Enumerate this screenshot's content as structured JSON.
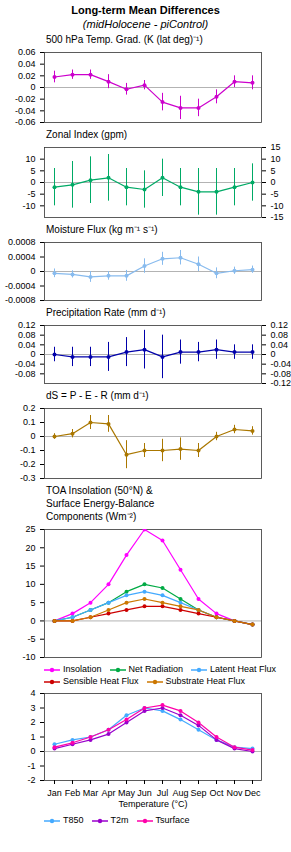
{
  "title": "Long-term Mean Differences",
  "subtitle": "(midHolocene - piControl)",
  "chart_data": [
    {
      "type": "line",
      "title": "500 hPa Temp. Grad. (K (lat deg)⁻¹)",
      "categories": [
        "Jan",
        "Feb",
        "Mar",
        "Apr",
        "May",
        "Jun",
        "Jul",
        "Aug",
        "Sep",
        "Oct",
        "Nov",
        "Dec"
      ],
      "values": [
        0.018,
        0.022,
        0.022,
        0.01,
        -0.003,
        0.004,
        -0.025,
        -0.035,
        -0.035,
        -0.016,
        0.01,
        0.008
      ],
      "yerr": [
        0.01,
        0.008,
        0.008,
        0.012,
        0.01,
        0.008,
        0.015,
        0.02,
        0.015,
        0.012,
        0.01,
        0.012
      ],
      "color": "#CC00CC",
      "marker": "circle",
      "ylim": [
        -0.06,
        0.06
      ],
      "yticks": [
        -0.06,
        -0.04,
        -0.02,
        0,
        0.02,
        0.04,
        0.06
      ],
      "tick_labels": "y"
    },
    {
      "type": "line",
      "title": "Zonal Index (gpm)",
      "categories": [
        "Jan",
        "Feb",
        "Mar",
        "Apr",
        "May",
        "Jun",
        "Jul",
        "Aug",
        "Sep",
        "Oct",
        "Nov",
        "Dec"
      ],
      "values": [
        -2,
        -1,
        1,
        2,
        -2,
        -3,
        2,
        -2,
        -4,
        -4,
        -2,
        0
      ],
      "yerr": [
        8,
        10,
        10,
        10,
        8,
        8,
        8,
        8,
        10,
        10,
        8,
        8
      ],
      "color": "#00AA66",
      "marker": "circle",
      "ylim": [
        -15,
        15
      ],
      "yticks": [
        -10,
        -5,
        0,
        5,
        10
      ],
      "y2lim": [
        -15,
        15
      ],
      "y2ticks": [
        15,
        10,
        5,
        0,
        -5,
        -10,
        -15
      ],
      "tick_labels": "y"
    },
    {
      "type": "line",
      "title": "Moisture Flux (kg m⁻¹ s⁻¹)",
      "categories": [
        "Jan",
        "Feb",
        "Mar",
        "Apr",
        "May",
        "Jun",
        "Jul",
        "Aug",
        "Sep",
        "Oct",
        "Nov",
        "Dec"
      ],
      "values": [
        -5e-05,
        -8e-05,
        -0.00015,
        -0.00012,
        -0.00012,
        0.00015,
        0.00035,
        0.00038,
        0.0002,
        -5e-05,
        2e-05,
        5e-05
      ],
      "yerr": [
        0.00012,
        0.0001,
        0.00015,
        0.00012,
        0.00015,
        0.0002,
        0.00018,
        0.0002,
        0.0002,
        0.00015,
        0.0001,
        0.0001
      ],
      "color": "#88BBEE",
      "marker": "circle",
      "ylim": [
        -0.0008,
        0.0008
      ],
      "yticks": [
        -0.0008,
        -0.0004,
        0,
        0.0004,
        0.0008
      ],
      "tick_labels": "y"
    },
    {
      "type": "line",
      "title": "Precipitation Rate (mm d⁻¹)",
      "categories": [
        "Jan",
        "Feb",
        "Mar",
        "Apr",
        "May",
        "Jun",
        "Jul",
        "Aug",
        "Sep",
        "Oct",
        "Nov",
        "Dec"
      ],
      "values": [
        0.0,
        -0.01,
        -0.01,
        -0.01,
        0.01,
        0.02,
        -0.01,
        0.01,
        0.01,
        0.02,
        0.01,
        0.01
      ],
      "yerr": [
        0.03,
        0.04,
        0.04,
        0.06,
        0.06,
        0.08,
        0.09,
        0.05,
        0.04,
        0.04,
        0.03,
        0.03
      ],
      "color": "#0000AA",
      "marker": "circle",
      "ylim": [
        -0.12,
        0.12
      ],
      "yticks": [
        -0.08,
        -0.04,
        0,
        0.04,
        0.08,
        0.12
      ],
      "y2lim": [
        -0.12,
        0.12
      ],
      "y2ticks": [
        0.12,
        0.08,
        0.04,
        0,
        -0.04,
        -0.08,
        -0.12
      ],
      "tick_labels": "y"
    },
    {
      "type": "line",
      "title": "dS = P - E - R (mm d⁻¹)",
      "categories": [
        "Jan",
        "Feb",
        "Mar",
        "Apr",
        "May",
        "Jun",
        "Jul",
        "Aug",
        "Sep",
        "Oct",
        "Nov",
        "Dec"
      ],
      "values": [
        0.0,
        0.02,
        0.1,
        0.09,
        -0.13,
        -0.1,
        -0.1,
        -0.09,
        -0.1,
        0.0,
        0.05,
        0.04
      ],
      "yerr": [
        0.02,
        0.03,
        0.05,
        0.06,
        0.1,
        0.05,
        0.08,
        0.08,
        0.05,
        0.03,
        0.03,
        0.03
      ],
      "color": "#AA7700",
      "marker": "circle",
      "ylim": [
        -0.3,
        0.2
      ],
      "yticks": [
        -0.3,
        -0.2,
        -0.1,
        0,
        0.1,
        0.2
      ],
      "tick_labels": "y"
    },
    {
      "type": "line",
      "title": "TOA Insolation (50°N) &\nSurface Energy-Balance\nComponents (Wm⁻²)",
      "categories": [
        "Jan",
        "Feb",
        "Mar",
        "Apr",
        "May",
        "Jun",
        "Jul",
        "Aug",
        "Sep",
        "Oct",
        "Nov",
        "Dec"
      ],
      "series": [
        {
          "name": "Insolation",
          "color": "#FF00FF",
          "values": [
            0,
            2,
            5,
            10,
            18,
            25,
            22,
            14,
            6,
            2,
            0,
            -1
          ]
        },
        {
          "name": "Net Radiation",
          "color": "#00AA44",
          "values": [
            0,
            1,
            3,
            5,
            8,
            10,
            9,
            6,
            3,
            1,
            0,
            -1
          ]
        },
        {
          "name": "Latent Heat Flux",
          "color": "#44AAFF",
          "values": [
            0,
            1,
            3,
            5,
            7,
            8,
            7,
            5,
            3,
            1,
            0,
            -1
          ]
        },
        {
          "name": "Sensible Heat Flux",
          "color": "#CC0000",
          "values": [
            0,
            0,
            1,
            2,
            3,
            4,
            4,
            3,
            2,
            1,
            0,
            -1
          ]
        },
        {
          "name": "Substrate Heat Flux",
          "color": "#CC7700",
          "values": [
            0,
            0,
            1,
            3,
            5,
            6,
            5,
            4,
            3,
            1,
            0,
            -1
          ]
        }
      ],
      "marker": "circle",
      "ylim": [
        -10,
        25
      ],
      "yticks": [
        -10,
        -5,
        0,
        5,
        10,
        15,
        20,
        25
      ],
      "legend": "bottom",
      "tick_labels": "y"
    },
    {
      "type": "line",
      "xlabel": "Temperature (°C)",
      "categories": [
        "Jan",
        "Feb",
        "Mar",
        "Apr",
        "May",
        "Jun",
        "Jul",
        "Aug",
        "Sep",
        "Oct",
        "Nov",
        "Dec"
      ],
      "series": [
        {
          "name": "T850",
          "color": "#44AAFF",
          "values": [
            0.5,
            0.8,
            1.0,
            1.5,
            2.5,
            3.0,
            2.8,
            2.2,
            1.5,
            0.8,
            0.3,
            0.2
          ]
        },
        {
          "name": "T2m",
          "color": "#9900CC",
          "values": [
            0.2,
            0.5,
            0.8,
            1.2,
            2.0,
            2.8,
            3.0,
            2.5,
            1.8,
            0.8,
            0.2,
            0.0
          ]
        },
        {
          "name": "Tsurface",
          "color": "#FF00AA",
          "values": [
            0.3,
            0.6,
            1.0,
            1.5,
            2.2,
            3.0,
            3.2,
            2.8,
            2.0,
            1.0,
            0.3,
            0.1
          ]
        }
      ],
      "marker": "circle",
      "ylim": [
        -2,
        4
      ],
      "yticks": [
        -2,
        -1,
        0,
        1,
        2,
        3,
        4
      ],
      "legend": "bottom"
    }
  ]
}
